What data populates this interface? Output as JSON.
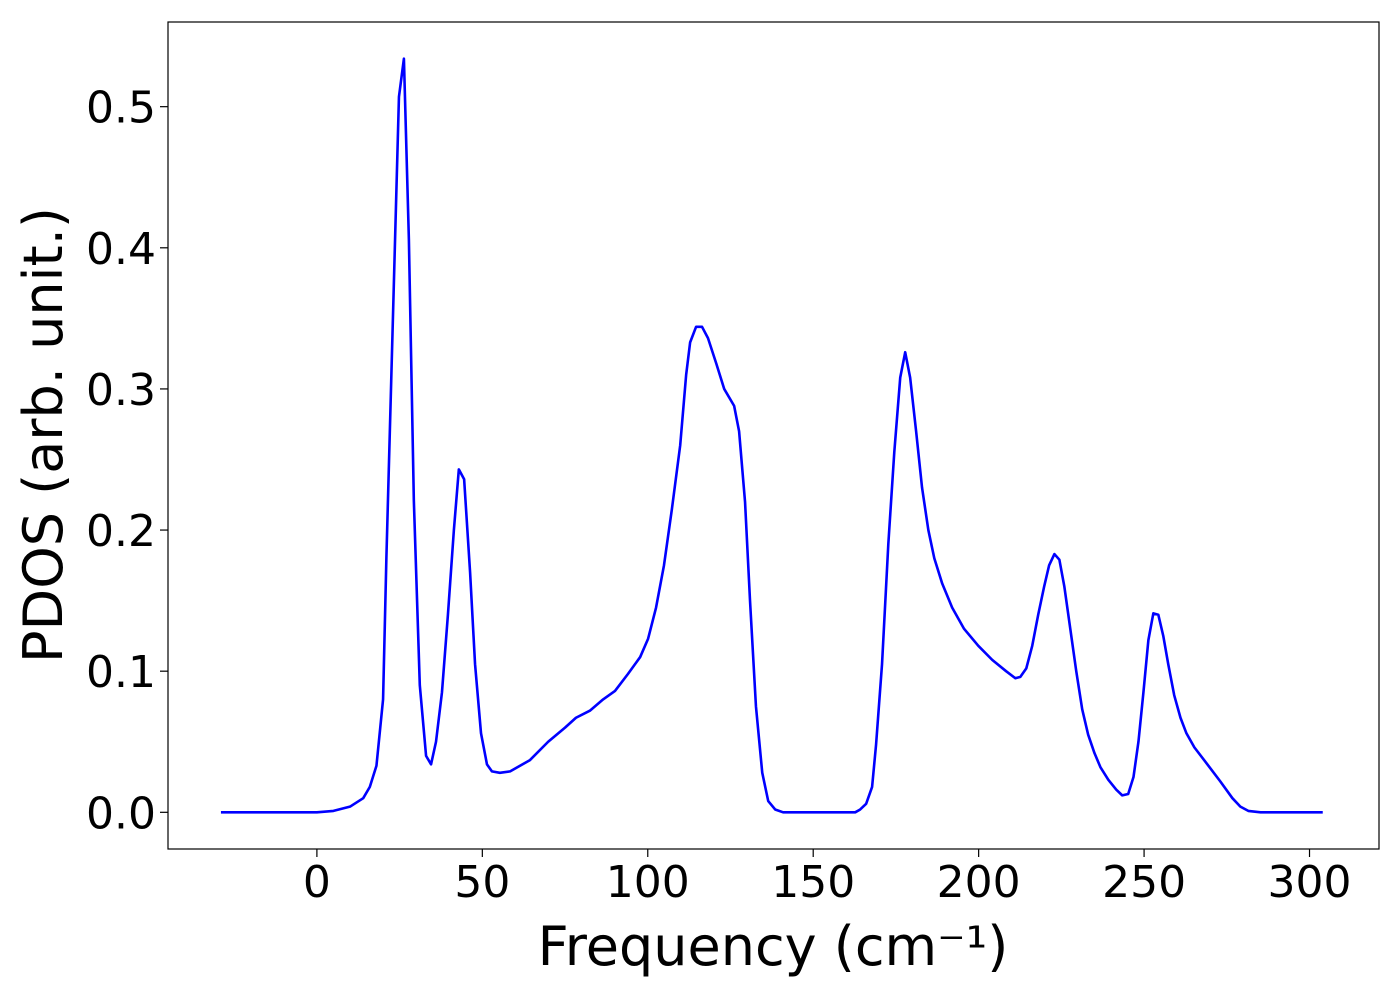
{
  "chart_data": {
    "type": "line",
    "xlabel": "Frequency (cm⁻¹)",
    "ylabel": "PDOS (arb. unit.)",
    "xlim": [
      -45,
      321
    ],
    "ylim": [
      -0.026,
      0.56
    ],
    "xticks": [
      0,
      50,
      100,
      150,
      200,
      250,
      300
    ],
    "yticks": [
      {
        "value": 0,
        "label": "0.0"
      },
      0.1,
      0.2,
      0.3,
      0.4,
      0.5
    ],
    "grid": false,
    "series": [
      {
        "name": "PDOS",
        "color": "#0000ff",
        "x": [
          -29,
          0,
          5,
          10,
          14,
          16,
          18,
          20,
          21,
          24.8,
          26.3,
          27.8,
          29.3,
          31.1,
          33,
          34.5,
          36,
          37.8,
          39.6,
          41.4,
          42.9,
          44.5,
          46.3,
          47.8,
          49.6,
          51.4,
          52.9,
          55.3,
          58.4,
          64.4,
          69.9,
          75,
          78.3,
          82.5,
          86.5,
          90.1,
          94,
          97.7,
          100.1,
          102.5,
          104.9,
          107.3,
          109.8,
          111.6,
          112.8,
          114.6,
          116.4,
          118.2,
          120.7,
          123.1,
          126.1,
          127.6,
          129.4,
          130.9,
          132.7,
          134.6,
          136.4,
          138.5,
          140.9,
          162.7,
          164.2,
          166,
          167.8,
          169,
          170.8,
          172.7,
          174.5,
          176.3,
          177.8,
          179.3,
          181.1,
          182.9,
          184.8,
          186.6,
          189,
          192,
          195.6,
          199.9,
          204.1,
          208.3,
          211.1,
          212.6,
          214.4,
          216.2,
          218,
          219.8,
          221.3,
          222.9,
          224.4,
          225.9,
          227.7,
          229.5,
          231.3,
          233.1,
          235,
          236.8,
          239.2,
          241.6,
          243.4,
          245.2,
          246.8,
          248.3,
          249.8,
          251.3,
          252.8,
          254.3,
          255.8,
          257.3,
          259.1,
          261,
          262.8,
          265.2,
          268.8,
          273,
          276.7,
          279.1,
          281.5,
          285.2,
          304
        ],
        "values": [
          0,
          0,
          0.001,
          0.004,
          0.01,
          0.018,
          0.033,
          0.08,
          0.18,
          0.507,
          0.534,
          0.406,
          0.221,
          0.09,
          0.04,
          0.034,
          0.05,
          0.085,
          0.14,
          0.2,
          0.243,
          0.236,
          0.17,
          0.105,
          0.056,
          0.034,
          0.029,
          0.028,
          0.029,
          0.037,
          0.05,
          0.06,
          0.067,
          0.072,
          0.08,
          0.086,
          0.098,
          0.11,
          0.123,
          0.145,
          0.175,
          0.215,
          0.26,
          0.31,
          0.333,
          0.344,
          0.344,
          0.336,
          0.318,
          0.3,
          0.288,
          0.27,
          0.22,
          0.15,
          0.075,
          0.028,
          0.008,
          0.002,
          0,
          0,
          0.002,
          0.006,
          0.018,
          0.048,
          0.105,
          0.19,
          0.255,
          0.308,
          0.326,
          0.308,
          0.27,
          0.23,
          0.2,
          0.18,
          0.162,
          0.145,
          0.13,
          0.118,
          0.108,
          0.1,
          0.095,
          0.096,
          0.102,
          0.118,
          0.14,
          0.16,
          0.175,
          0.183,
          0.179,
          0.16,
          0.13,
          0.1,
          0.073,
          0.055,
          0.042,
          0.032,
          0.023,
          0.016,
          0.012,
          0.013,
          0.025,
          0.05,
          0.085,
          0.122,
          0.141,
          0.14,
          0.125,
          0.105,
          0.083,
          0.067,
          0.056,
          0.046,
          0.035,
          0.022,
          0.01,
          0.004,
          0.001,
          0,
          0
        ]
      }
    ]
  }
}
